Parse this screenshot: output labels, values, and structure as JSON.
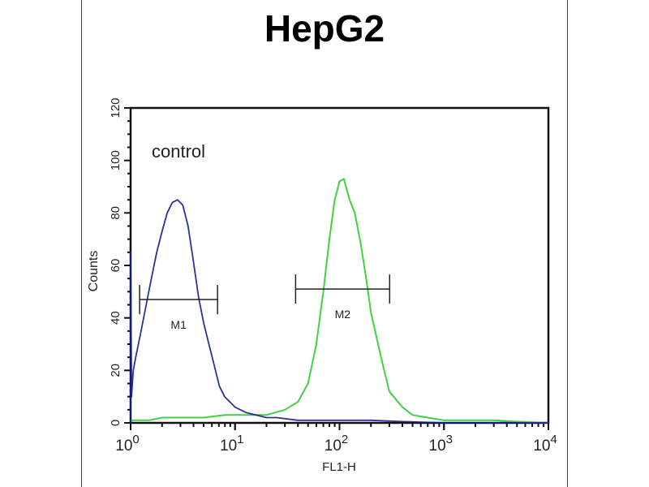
{
  "chart_data": {
    "type": "line",
    "title": "HepG2",
    "xlabel": "FL1-H",
    "ylabel": "Counts",
    "x_scale": "log",
    "xlim": [
      1,
      10000
    ],
    "ylim": [
      0,
      120
    ],
    "x_ticks": [
      {
        "base": "10",
        "exp": "0"
      },
      {
        "base": "10",
        "exp": "1"
      },
      {
        "base": "10",
        "exp": "2"
      },
      {
        "base": "10",
        "exp": "3"
      },
      {
        "base": "10",
        "exp": "4"
      }
    ],
    "y_ticks": [
      "0",
      "20",
      "40",
      "60",
      "80",
      "100",
      "120"
    ],
    "grid": false,
    "annotation": "control",
    "markers": [
      {
        "label": "M1",
        "x_start": 1.22,
        "x_end": 6.8,
        "y": 47
      },
      {
        "label": "M2",
        "x_start": 38,
        "x_end": 302,
        "y": 51
      }
    ],
    "series": [
      {
        "color": "#1a1a8c",
        "x": [
          1.0,
          1.0,
          1.02,
          1.06,
          1.12,
          1.26,
          1.41,
          1.58,
          1.78,
          2.0,
          2.24,
          2.51,
          2.82,
          3.16,
          3.55,
          3.98,
          4.47,
          5.01,
          5.62,
          6.31,
          7.08,
          7.94,
          8.91,
          10,
          12.6,
          15.8,
          20,
          25,
          40,
          60,
          100,
          200,
          400,
          1000,
          3000,
          10000
        ],
        "y": [
          0,
          65,
          10,
          20,
          25,
          35,
          45,
          55,
          65,
          73,
          80,
          84,
          85,
          83,
          75,
          62,
          48,
          38,
          30,
          22,
          14,
          10,
          8,
          6,
          4,
          3,
          2,
          2,
          1,
          1,
          1,
          1,
          0.5,
          0,
          0,
          0
        ]
      },
      {
        "color": "#2ecc2e",
        "x": [
          1,
          1.5,
          2,
          3,
          5,
          8,
          12,
          20,
          30,
          40,
          50,
          60,
          70,
          80,
          90,
          100,
          110,
          125,
          140,
          160,
          180,
          200,
          250,
          300,
          400,
          500,
          700,
          1000,
          2000,
          3000,
          5000,
          10000
        ],
        "y": [
          1,
          1,
          2,
          2,
          2,
          3,
          3,
          3,
          5,
          8,
          15,
          30,
          50,
          70,
          85,
          92,
          93,
          85,
          80,
          68,
          55,
          42,
          25,
          12,
          6,
          3,
          2,
          1,
          1,
          1,
          0.5,
          0
        ]
      }
    ]
  }
}
